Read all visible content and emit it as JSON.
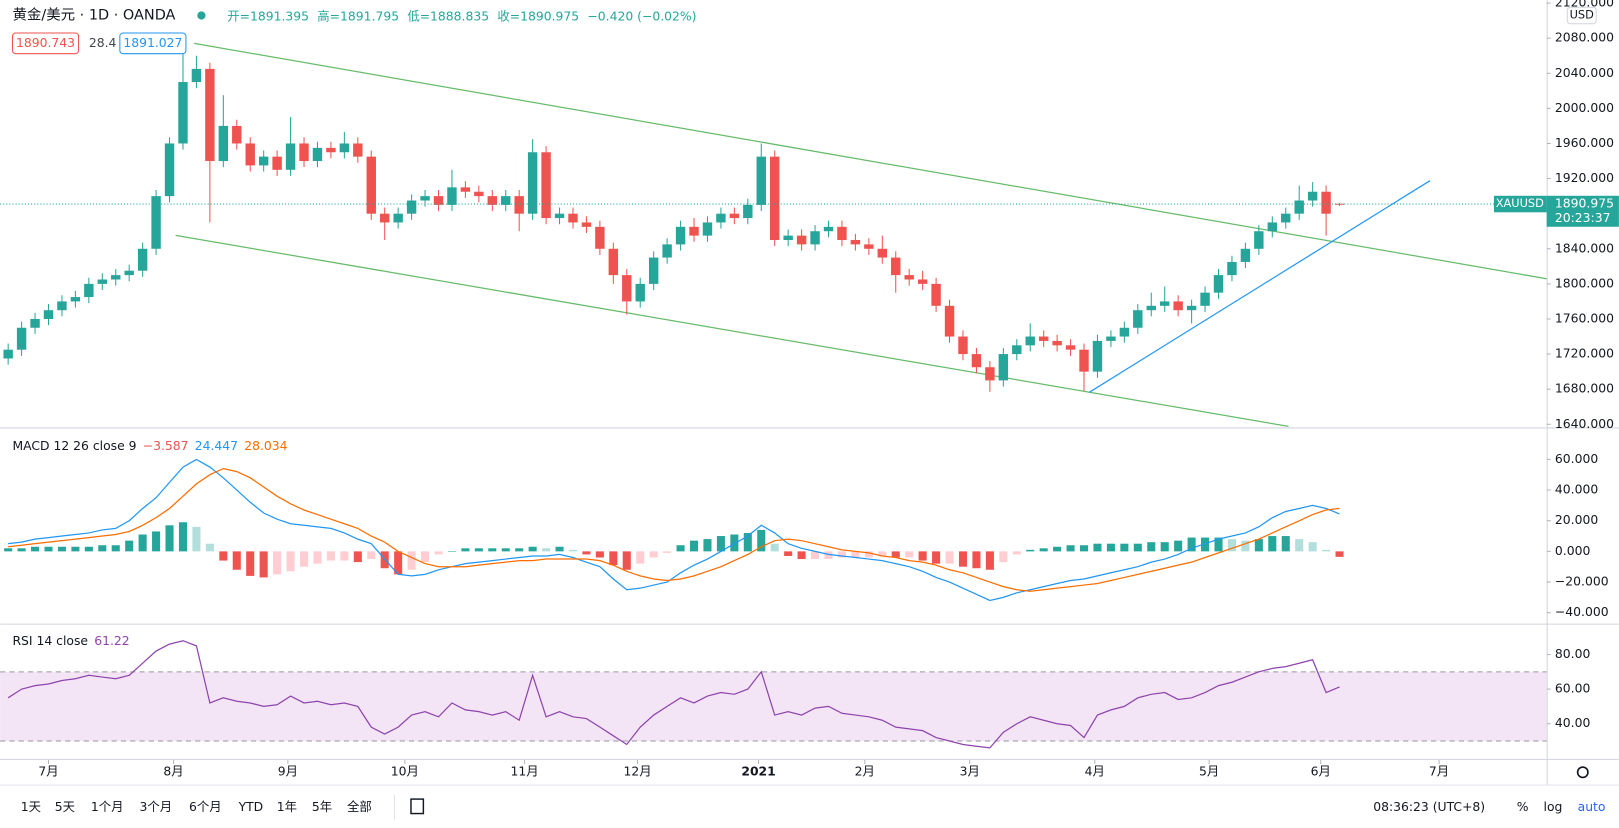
{
  "chart_data": [
    {
      "type": "candlestick",
      "title": "黄金/美元 · 1D · OANDA",
      "ohlc": [
        "开=1891.395",
        "高=1891.795",
        "低=1888.835",
        "收=1890.975",
        "−0.420 (−0.02%)"
      ],
      "bid": "1890.743",
      "spread": "28.4",
      "ask": "1891.027",
      "unit": "USD",
      "colors": {
        "up": "#26a69a",
        "down": "#ef5350"
      },
      "xlim": [
        -0.6,
        114.4
      ],
      "xticks": [
        {
          "value": 3.0,
          "label": "7月"
        },
        {
          "value": 12.3,
          "label": "8月"
        },
        {
          "value": 20.8,
          "label": "9月"
        },
        {
          "value": 29.5,
          "label": "10月"
        },
        {
          "value": 38.4,
          "label": "11月"
        },
        {
          "value": 46.8,
          "label": "12月"
        },
        {
          "value": 55.8,
          "label": "2021"
        },
        {
          "value": 63.7,
          "label": "2月"
        },
        {
          "value": 71.5,
          "label": "3月"
        },
        {
          "value": 80.8,
          "label": "4月"
        },
        {
          "value": 89.3,
          "label": "5月"
        },
        {
          "value": 97.6,
          "label": "6月"
        },
        {
          "value": 106.4,
          "label": "7月"
        }
      ],
      "ylim": [
        1637.6,
        2123.5
      ],
      "yticks": [
        {
          "value": 1640,
          "label": "1640.000"
        },
        {
          "value": 1680,
          "label": "1680.000"
        },
        {
          "value": 1720,
          "label": "1720.000"
        },
        {
          "value": 1760,
          "label": "1760.000"
        },
        {
          "value": 1800,
          "label": "1800.000"
        },
        {
          "value": 1840,
          "label": "1840.000"
        },
        {
          "value": 1880,
          "label": "1880.000"
        },
        {
          "value": 1920,
          "label": "1920.000"
        },
        {
          "value": 1960,
          "label": "1960.000"
        },
        {
          "value": 2000,
          "label": "2000.000"
        },
        {
          "value": 2040,
          "label": "2040.000"
        },
        {
          "value": 2080,
          "label": "2080.000"
        },
        {
          "value": 2120,
          "label": "2120.000"
        }
      ],
      "last_price": {
        "value": 1890.975,
        "label": "1890.975",
        "symbol": "XAUUSD",
        "countdown": "20:23:37",
        "color": "#26a69a"
      },
      "open": [
        1715,
        1725,
        1750,
        1760,
        1770,
        1780,
        1785,
        1800,
        1805,
        1810,
        1815,
        1840,
        1900,
        1960,
        2030,
        2045,
        1940,
        1980,
        1960,
        1935,
        1945,
        1930,
        1960,
        1940,
        1955,
        1950,
        1960,
        1945,
        1880,
        1870,
        1880,
        1895,
        1900,
        1890,
        1910,
        1905,
        1900,
        1890,
        1900,
        1880,
        1950,
        1875,
        1880,
        1870,
        1865,
        1840,
        1810,
        1780,
        1800,
        1830,
        1845,
        1865,
        1855,
        1870,
        1880,
        1875,
        1890,
        1945,
        1850,
        1855,
        1845,
        1860,
        1865,
        1850,
        1845,
        1840,
        1830,
        1810,
        1805,
        1800,
        1775,
        1740,
        1720,
        1705,
        1690,
        1720,
        1730,
        1740,
        1735,
        1730,
        1725,
        1700,
        1735,
        1740,
        1750,
        1770,
        1775,
        1780,
        1770,
        1775,
        1790,
        1810,
        1825,
        1840,
        1860,
        1870,
        1880,
        1895,
        1905,
        1891.395
      ],
      "high": [
        1732,
        1757,
        1767,
        1777,
        1787,
        1792,
        1807,
        1812,
        1817,
        1822,
        1847,
        1907,
        1967,
        2075,
        2060,
        2052,
        2015,
        1987,
        1967,
        1952,
        1952,
        1990,
        1967,
        1962,
        1962,
        1973,
        1967,
        1952,
        1887,
        1887,
        1902,
        1907,
        1907,
        1930,
        1917,
        1912,
        1907,
        1907,
        1907,
        1965,
        1957,
        1887,
        1887,
        1877,
        1872,
        1847,
        1817,
        1807,
        1837,
        1852,
        1872,
        1875,
        1877,
        1887,
        1887,
        1897,
        1960,
        1952,
        1862,
        1862,
        1867,
        1872,
        1872,
        1857,
        1852,
        1855,
        1837,
        1817,
        1815,
        1807,
        1782,
        1747,
        1727,
        1712,
        1727,
        1737,
        1755,
        1747,
        1742,
        1737,
        1732,
        1742,
        1747,
        1757,
        1777,
        1790,
        1797,
        1787,
        1782,
        1797,
        1817,
        1832,
        1847,
        1867,
        1877,
        1887,
        1912,
        1916,
        1912,
        1891.795
      ],
      "low": [
        1708,
        1718,
        1743,
        1753,
        1763,
        1773,
        1778,
        1793,
        1798,
        1803,
        1808,
        1833,
        1893,
        1953,
        2023,
        1870,
        1933,
        1953,
        1928,
        1928,
        1923,
        1923,
        1933,
        1933,
        1943,
        1943,
        1938,
        1873,
        1850,
        1863,
        1873,
        1888,
        1883,
        1883,
        1898,
        1893,
        1883,
        1883,
        1860,
        1873,
        1868,
        1868,
        1863,
        1858,
        1833,
        1800,
        1765,
        1773,
        1793,
        1823,
        1838,
        1848,
        1848,
        1863,
        1868,
        1868,
        1883,
        1843,
        1843,
        1838,
        1838,
        1853,
        1843,
        1838,
        1833,
        1823,
        1790,
        1798,
        1793,
        1768,
        1733,
        1713,
        1698,
        1677,
        1683,
        1713,
        1723,
        1728,
        1723,
        1718,
        1678,
        1693,
        1728,
        1733,
        1743,
        1763,
        1768,
        1763,
        1755,
        1768,
        1783,
        1803,
        1818,
        1833,
        1853,
        1863,
        1873,
        1888,
        1855,
        1888.835
      ],
      "close": [
        1725,
        1750,
        1760,
        1770,
        1780,
        1785,
        1800,
        1805,
        1810,
        1815,
        1840,
        1900,
        1960,
        2030,
        2045,
        1940,
        1980,
        1960,
        1935,
        1945,
        1930,
        1960,
        1940,
        1955,
        1950,
        1960,
        1945,
        1880,
        1870,
        1880,
        1895,
        1900,
        1890,
        1910,
        1905,
        1900,
        1890,
        1900,
        1880,
        1950,
        1875,
        1880,
        1870,
        1865,
        1840,
        1810,
        1780,
        1800,
        1830,
        1845,
        1865,
        1855,
        1870,
        1880,
        1875,
        1890,
        1945,
        1850,
        1855,
        1845,
        1860,
        1865,
        1850,
        1845,
        1840,
        1830,
        1810,
        1805,
        1800,
        1775,
        1740,
        1720,
        1705,
        1690,
        1720,
        1730,
        1740,
        1735,
        1730,
        1725,
        1700,
        1735,
        1740,
        1750,
        1770,
        1775,
        1780,
        1770,
        1775,
        1790,
        1810,
        1825,
        1840,
        1860,
        1870,
        1880,
        1895,
        1905,
        1880,
        1890.975
      ]
    },
    {
      "type": "macd",
      "title": "MACD 12 26 close 9",
      "legend_values": [
        "−3.587",
        "24.447",
        "28.034"
      ],
      "xlim": [
        -0.6,
        114.4
      ],
      "ylim": [
        -47.1,
        79.5
      ],
      "yticks": [
        {
          "value": -40,
          "label": "−40.000"
        },
        {
          "value": -20,
          "label": "−20.000"
        },
        {
          "value": 0,
          "label": "0.000"
        },
        {
          "value": 20,
          "label": "20.000"
        },
        {
          "value": 40,
          "label": "40.000"
        },
        {
          "value": 60,
          "label": "60.000"
        }
      ],
      "series": [
        {
          "colors": [
            "#26a69a",
            "#b2dfdb",
            "#ffcdd2",
            "#ef5350"
          ],
          "values": [
            2,
            2,
            3,
            3,
            3,
            3,
            3,
            4,
            4,
            7,
            11,
            13,
            17,
            19,
            16,
            5,
            -6,
            -12,
            -16,
            -17,
            -15,
            -13,
            -10,
            -8,
            -6,
            -6,
            -7,
            -5,
            -11,
            -15,
            -12,
            -7,
            -2,
            0,
            2,
            2,
            2,
            2,
            2,
            3,
            2,
            3,
            1,
            -2,
            -4,
            -9,
            -12,
            -8,
            -4,
            -1,
            4,
            7,
            8,
            10,
            11,
            12,
            14,
            5,
            -3,
            -5,
            -5,
            -5,
            -4,
            -4,
            -4,
            -3,
            -4,
            -4,
            -6,
            -8,
            -8,
            -10,
            -11,
            -12,
            -7,
            -2,
            1,
            2,
            3,
            4,
            4,
            5,
            5,
            5,
            5,
            6,
            6,
            7,
            9,
            9,
            9,
            8,
            7,
            8,
            10,
            10,
            8,
            6,
            1,
            -3.587
          ]
        },
        {
          "color": "#2196f3",
          "values": [
            5,
            6,
            8,
            9,
            10,
            11,
            12,
            14,
            15,
            20,
            28,
            35,
            45,
            55,
            60,
            55,
            48,
            40,
            32,
            25,
            21,
            18,
            17,
            16,
            15,
            12,
            8,
            5,
            -5,
            -15,
            -16,
            -15,
            -12,
            -10,
            -8,
            -7,
            -6,
            -5,
            -4,
            -3,
            -3,
            -2,
            -4,
            -7,
            -10,
            -18,
            -25,
            -24,
            -22,
            -20,
            -14,
            -9,
            -5,
            0,
            5,
            10,
            17,
            12,
            5,
            2,
            0,
            -2,
            -3,
            -4,
            -5,
            -6,
            -8,
            -10,
            -13,
            -17,
            -20,
            -24,
            -28,
            -32,
            -30,
            -27,
            -25,
            -23,
            -21,
            -19,
            -18,
            -16,
            -14,
            -12,
            -10,
            -7,
            -5,
            -2,
            2,
            5,
            8,
            10,
            12,
            16,
            22,
            26,
            28,
            30,
            28,
            24.447
          ]
        },
        {
          "color": "#ff6d00",
          "values": [
            3,
            4,
            5,
            6,
            7,
            8,
            9,
            10,
            11,
            13,
            17,
            22,
            28,
            36,
            44,
            50,
            54,
            52,
            48,
            42,
            36,
            31,
            27,
            24,
            21,
            18,
            15,
            10,
            6,
            0,
            -4,
            -8,
            -10,
            -10,
            -10,
            -9,
            -8,
            -7,
            -6,
            -6,
            -5,
            -5,
            -5,
            -5,
            -6,
            -9,
            -13,
            -16,
            -18,
            -19,
            -18,
            -16,
            -13,
            -10,
            -6,
            -2,
            3,
            7,
            8,
            7,
            5,
            3,
            1,
            0,
            -1,
            -3,
            -4,
            -6,
            -7,
            -9,
            -12,
            -14,
            -17,
            -20,
            -23,
            -25,
            -26,
            -25,
            -24,
            -23,
            -22,
            -21,
            -19,
            -17,
            -15,
            -13,
            -11,
            -9,
            -7,
            -4,
            -1,
            2,
            5,
            8,
            12,
            16,
            20,
            24,
            27,
            28.034
          ]
        }
      ]
    },
    {
      "type": "line",
      "title": "RSI 14 close",
      "xlim": [
        -0.6,
        114.4
      ],
      "ylim": [
        19.7,
        97.3
      ],
      "yticks": [
        {
          "value": 40,
          "label": "40.00"
        },
        {
          "value": 60,
          "label": "60.00"
        },
        {
          "value": 80,
          "label": "80.00"
        }
      ],
      "band": [
        30,
        70
      ],
      "band_color": "#f3e5f5",
      "series": [
        {
          "color": "#8e44ad",
          "values": [
            55,
            60,
            62,
            63,
            65,
            66,
            68,
            67,
            66,
            68,
            75,
            82,
            86,
            88,
            85,
            52,
            55,
            53,
            52,
            50,
            51,
            56,
            52,
            53,
            51,
            52,
            50,
            38,
            34,
            38,
            45,
            47,
            44,
            52,
            48,
            47,
            45,
            47,
            42,
            68,
            44,
            47,
            44,
            43,
            38,
            33,
            28,
            38,
            45,
            50,
            55,
            52,
            56,
            58,
            57,
            60,
            70,
            45,
            47,
            45,
            49,
            50,
            46,
            45,
            44,
            42,
            38,
            37,
            36,
            32,
            30,
            28,
            27,
            26,
            35,
            40,
            44,
            42,
            40,
            39,
            32,
            45,
            48,
            50,
            55,
            57,
            58,
            54,
            55,
            58,
            62,
            64,
            67,
            70,
            72,
            73,
            75,
            77,
            58,
            61.22
          ]
        }
      ]
    }
  ],
  "toolbar": {
    "ranges": [
      "1天",
      "5天",
      "1个月",
      "3个月",
      "6个月",
      "YTD",
      "1年",
      "5年",
      "全部"
    ],
    "clock": "08:36:23 (UTC+8)",
    "options": [
      "%",
      "log",
      "auto"
    ]
  }
}
